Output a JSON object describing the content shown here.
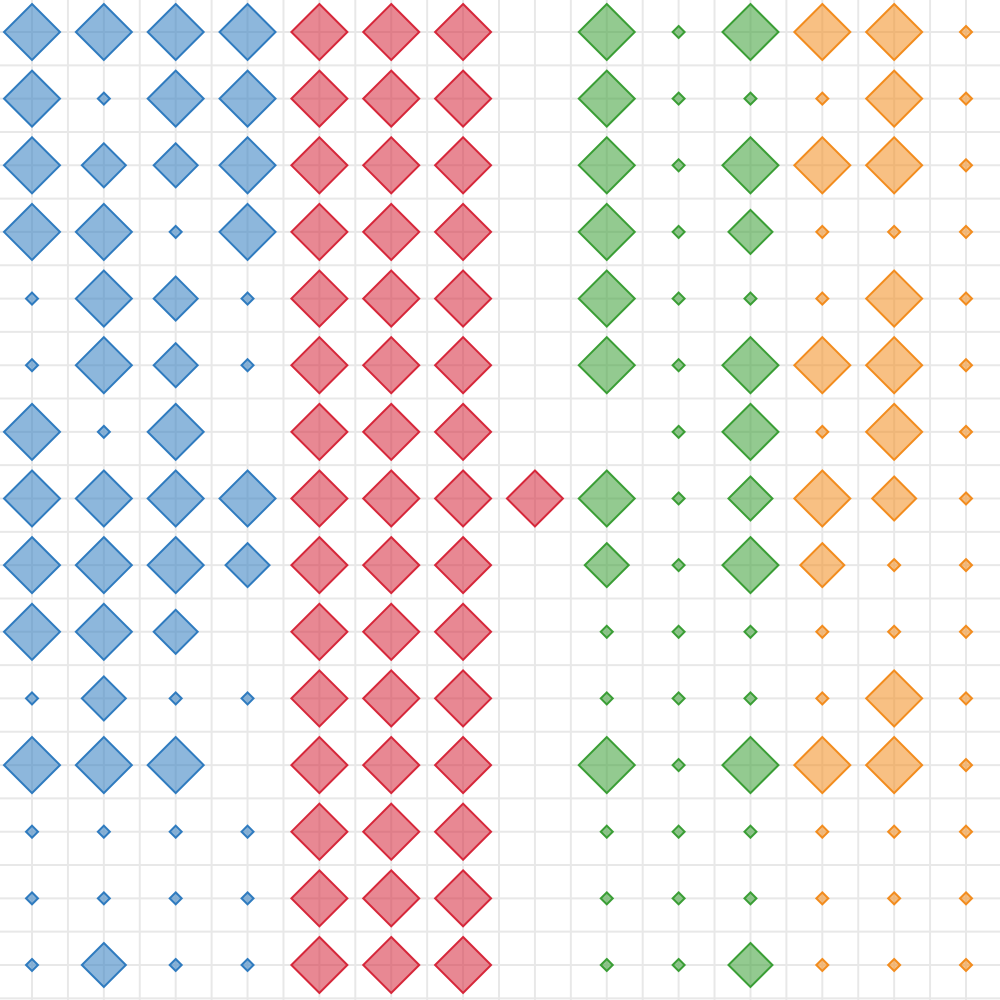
{
  "chart_data": {
    "type": "diamond_matrix",
    "grid": true,
    "series": [
      {
        "color": "#2f7bbf",
        "values": [
          [
            28,
            28,
            28,
            28
          ],
          [
            28,
            6,
            28,
            28
          ],
          [
            28,
            22,
            22,
            28
          ],
          [
            28,
            28,
            6,
            28
          ],
          [
            6,
            28,
            22,
            6
          ],
          [
            6,
            28,
            22,
            6
          ],
          [
            28,
            6,
            28,
            null
          ],
          [
            28,
            28,
            28,
            28
          ],
          [
            28,
            28,
            28,
            22
          ],
          [
            28,
            28,
            22,
            null
          ],
          [
            6,
            22,
            6,
            6
          ],
          [
            28,
            28,
            28,
            null
          ],
          [
            6,
            6,
            6,
            6
          ],
          [
            6,
            6,
            6,
            6
          ],
          [
            6,
            22,
            6,
            6
          ]
        ]
      },
      {
        "color": "#d6273a",
        "values": [
          [
            28,
            28,
            28,
            null
          ],
          [
            28,
            28,
            28,
            null
          ],
          [
            28,
            28,
            28,
            null
          ],
          [
            28,
            28,
            28,
            null
          ],
          [
            28,
            28,
            28,
            null
          ],
          [
            28,
            28,
            28,
            null
          ],
          [
            28,
            28,
            28,
            null
          ],
          [
            28,
            28,
            28,
            28
          ],
          [
            28,
            28,
            28,
            null
          ],
          [
            28,
            28,
            28,
            null
          ],
          [
            28,
            28,
            28,
            null
          ],
          [
            28,
            28,
            28,
            null
          ],
          [
            28,
            28,
            28,
            null
          ],
          [
            28,
            28,
            28,
            null
          ],
          [
            28,
            28,
            28,
            null
          ]
        ]
      },
      {
        "color": "#3a9e35",
        "values": [
          [
            28,
            6,
            28
          ],
          [
            28,
            6,
            6
          ],
          [
            28,
            6,
            28
          ],
          [
            28,
            6,
            22
          ],
          [
            28,
            6,
            6
          ],
          [
            28,
            6,
            28
          ],
          [
            null,
            6,
            28
          ],
          [
            28,
            6,
            22
          ],
          [
            22,
            6,
            28
          ],
          [
            6,
            6,
            6
          ],
          [
            6,
            6,
            6
          ],
          [
            28,
            6,
            28
          ],
          [
            6,
            6,
            6
          ],
          [
            6,
            6,
            6
          ],
          [
            6,
            6,
            22
          ]
        ]
      },
      {
        "color": "#f28c1e",
        "values": [
          [
            28,
            28,
            6
          ],
          [
            6,
            28,
            6
          ],
          [
            28,
            28,
            6
          ],
          [
            6,
            6,
            6
          ],
          [
            6,
            28,
            6
          ],
          [
            28,
            28,
            6
          ],
          [
            6,
            28,
            6
          ],
          [
            28,
            22,
            6
          ],
          [
            22,
            6,
            6
          ],
          [
            6,
            6,
            6
          ],
          [
            6,
            28,
            6
          ],
          [
            28,
            28,
            6
          ],
          [
            6,
            6,
            6
          ],
          [
            6,
            6,
            6
          ],
          [
            6,
            6,
            6
          ]
        ]
      }
    ]
  }
}
